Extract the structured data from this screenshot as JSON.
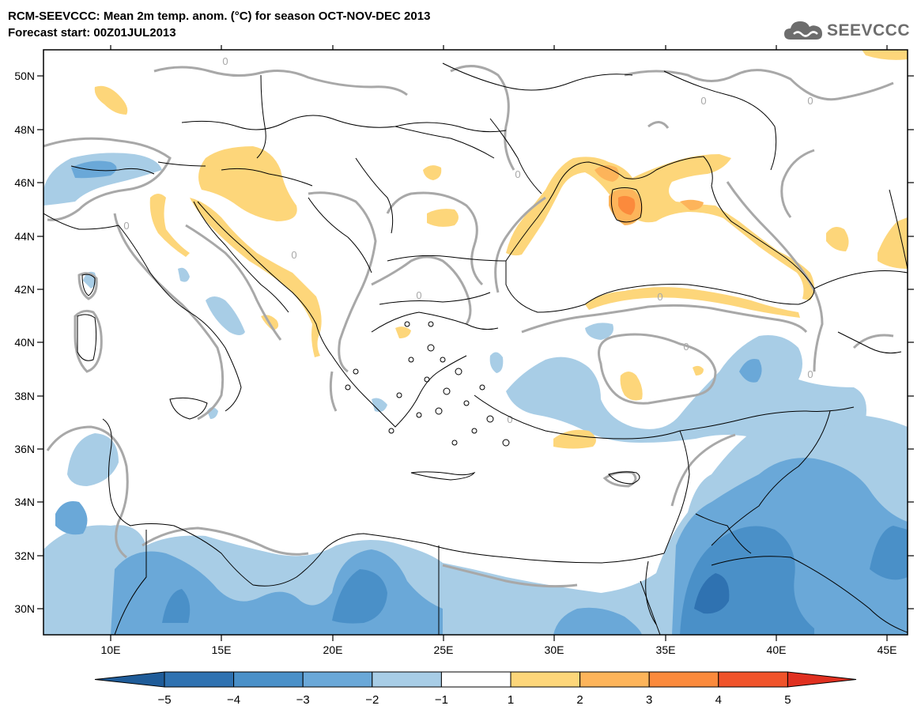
{
  "header": {
    "title_line1": "RCM-SEEVCCC: Mean 2m temp. anom. (°C) for season OCT-NOV-DEC 2013",
    "title_line2": "Forecast start: 00Z01JUL2013",
    "logo_text": "SEEVCCC"
  },
  "map": {
    "lon_labels": [
      "10E",
      "15E",
      "20E",
      "25E",
      "30E",
      "35E",
      "40E",
      "45E"
    ],
    "lat_labels": [
      "50N",
      "48N",
      "46N",
      "44N",
      "42N",
      "40N",
      "38N",
      "36N",
      "34N",
      "32N",
      "30N"
    ],
    "contour_label": "0",
    "colors": {
      "neg5": "#1f5c99",
      "neg4": "#2f72b1",
      "neg3": "#4a90c8",
      "neg2": "#6aa8d8",
      "neg1": "#a8cde6",
      "zero": "#ffffff",
      "pos1": "#fdd67a",
      "pos2": "#fdb45a",
      "pos3": "#fb8a3c",
      "pos4": "#f0532a",
      "pos5": "#d9251e",
      "contour": "#a8a8a8",
      "border": "#000000"
    }
  },
  "colorbar": {
    "tick_labels": [
      "−5",
      "−4",
      "−3",
      "−2",
      "−1",
      "1",
      "2",
      "3",
      "4",
      "5"
    ],
    "colors": [
      "#1f5c99",
      "#2f72b1",
      "#4a90c8",
      "#6aa8d8",
      "#a8cde6",
      "#ffffff",
      "#fdd67a",
      "#fdb45a",
      "#fb8a3c",
      "#f0532a",
      "#d9251e",
      "#e03020"
    ]
  }
}
